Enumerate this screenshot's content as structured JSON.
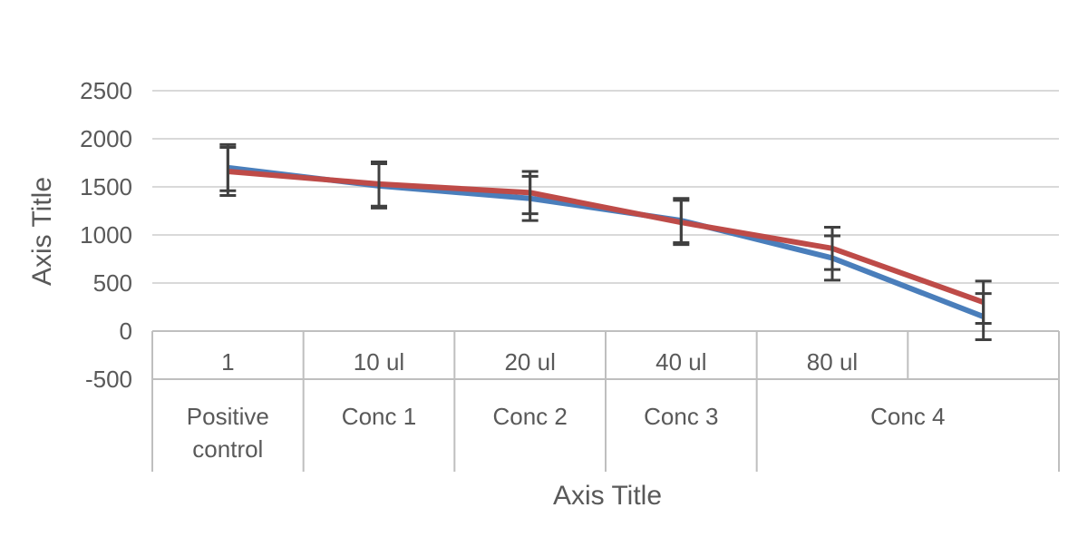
{
  "chart_data": {
    "type": "line",
    "xlabel": "Axis Title",
    "ylabel": "Axis Title",
    "ylim": [
      -500,
      2500
    ],
    "yticks": [
      2500,
      2000,
      1500,
      1000,
      500,
      0,
      -500
    ],
    "grid": true,
    "categories": [
      "1",
      "10 ul",
      "20 ul",
      "40 ul",
      "80 ul",
      ""
    ],
    "groups": [
      {
        "label": "Positive control",
        "span": 1
      },
      {
        "label": "Conc 1",
        "span": 1
      },
      {
        "label": "Conc 2",
        "span": 1
      },
      {
        "label": "Conc 3",
        "span": 1
      },
      {
        "label": "Conc 4",
        "span": 2
      }
    ],
    "series": [
      {
        "color": "#4a7ebb",
        "values": [
          1700,
          1510,
          1380,
          1150,
          760,
          150
        ],
        "errors": [
          240,
          230,
          230,
          230,
          230,
          240
        ]
      },
      {
        "color": "#be4b48",
        "values": [
          1660,
          1530,
          1440,
          1130,
          860,
          300
        ],
        "errors": [
          250,
          230,
          220,
          230,
          220,
          220
        ]
      }
    ]
  }
}
